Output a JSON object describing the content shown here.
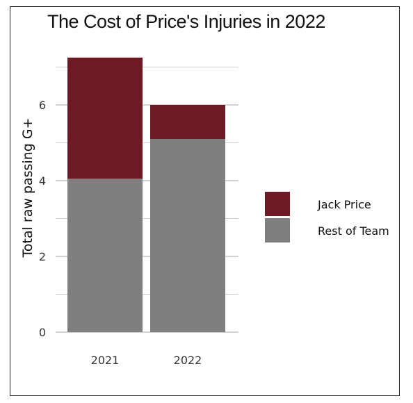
{
  "chart_data": {
    "type": "bar",
    "stacked": true,
    "title": "The Cost of Price's Injuries in 2022",
    "xlabel": "",
    "ylabel": "Total raw passing G+",
    "categories": [
      "2021",
      "2022"
    ],
    "series": [
      {
        "name": "Rest of Team",
        "color": "#7f7f7f",
        "values": [
          4.05,
          5.1
        ]
      },
      {
        "name": "Jack Price",
        "color": "#6d1a25",
        "values": [
          3.2,
          0.9
        ]
      }
    ],
    "ylim": [
      0,
      7.25
    ],
    "yticks": [
      0,
      2,
      4,
      6
    ],
    "grid": true,
    "legend": "right"
  }
}
